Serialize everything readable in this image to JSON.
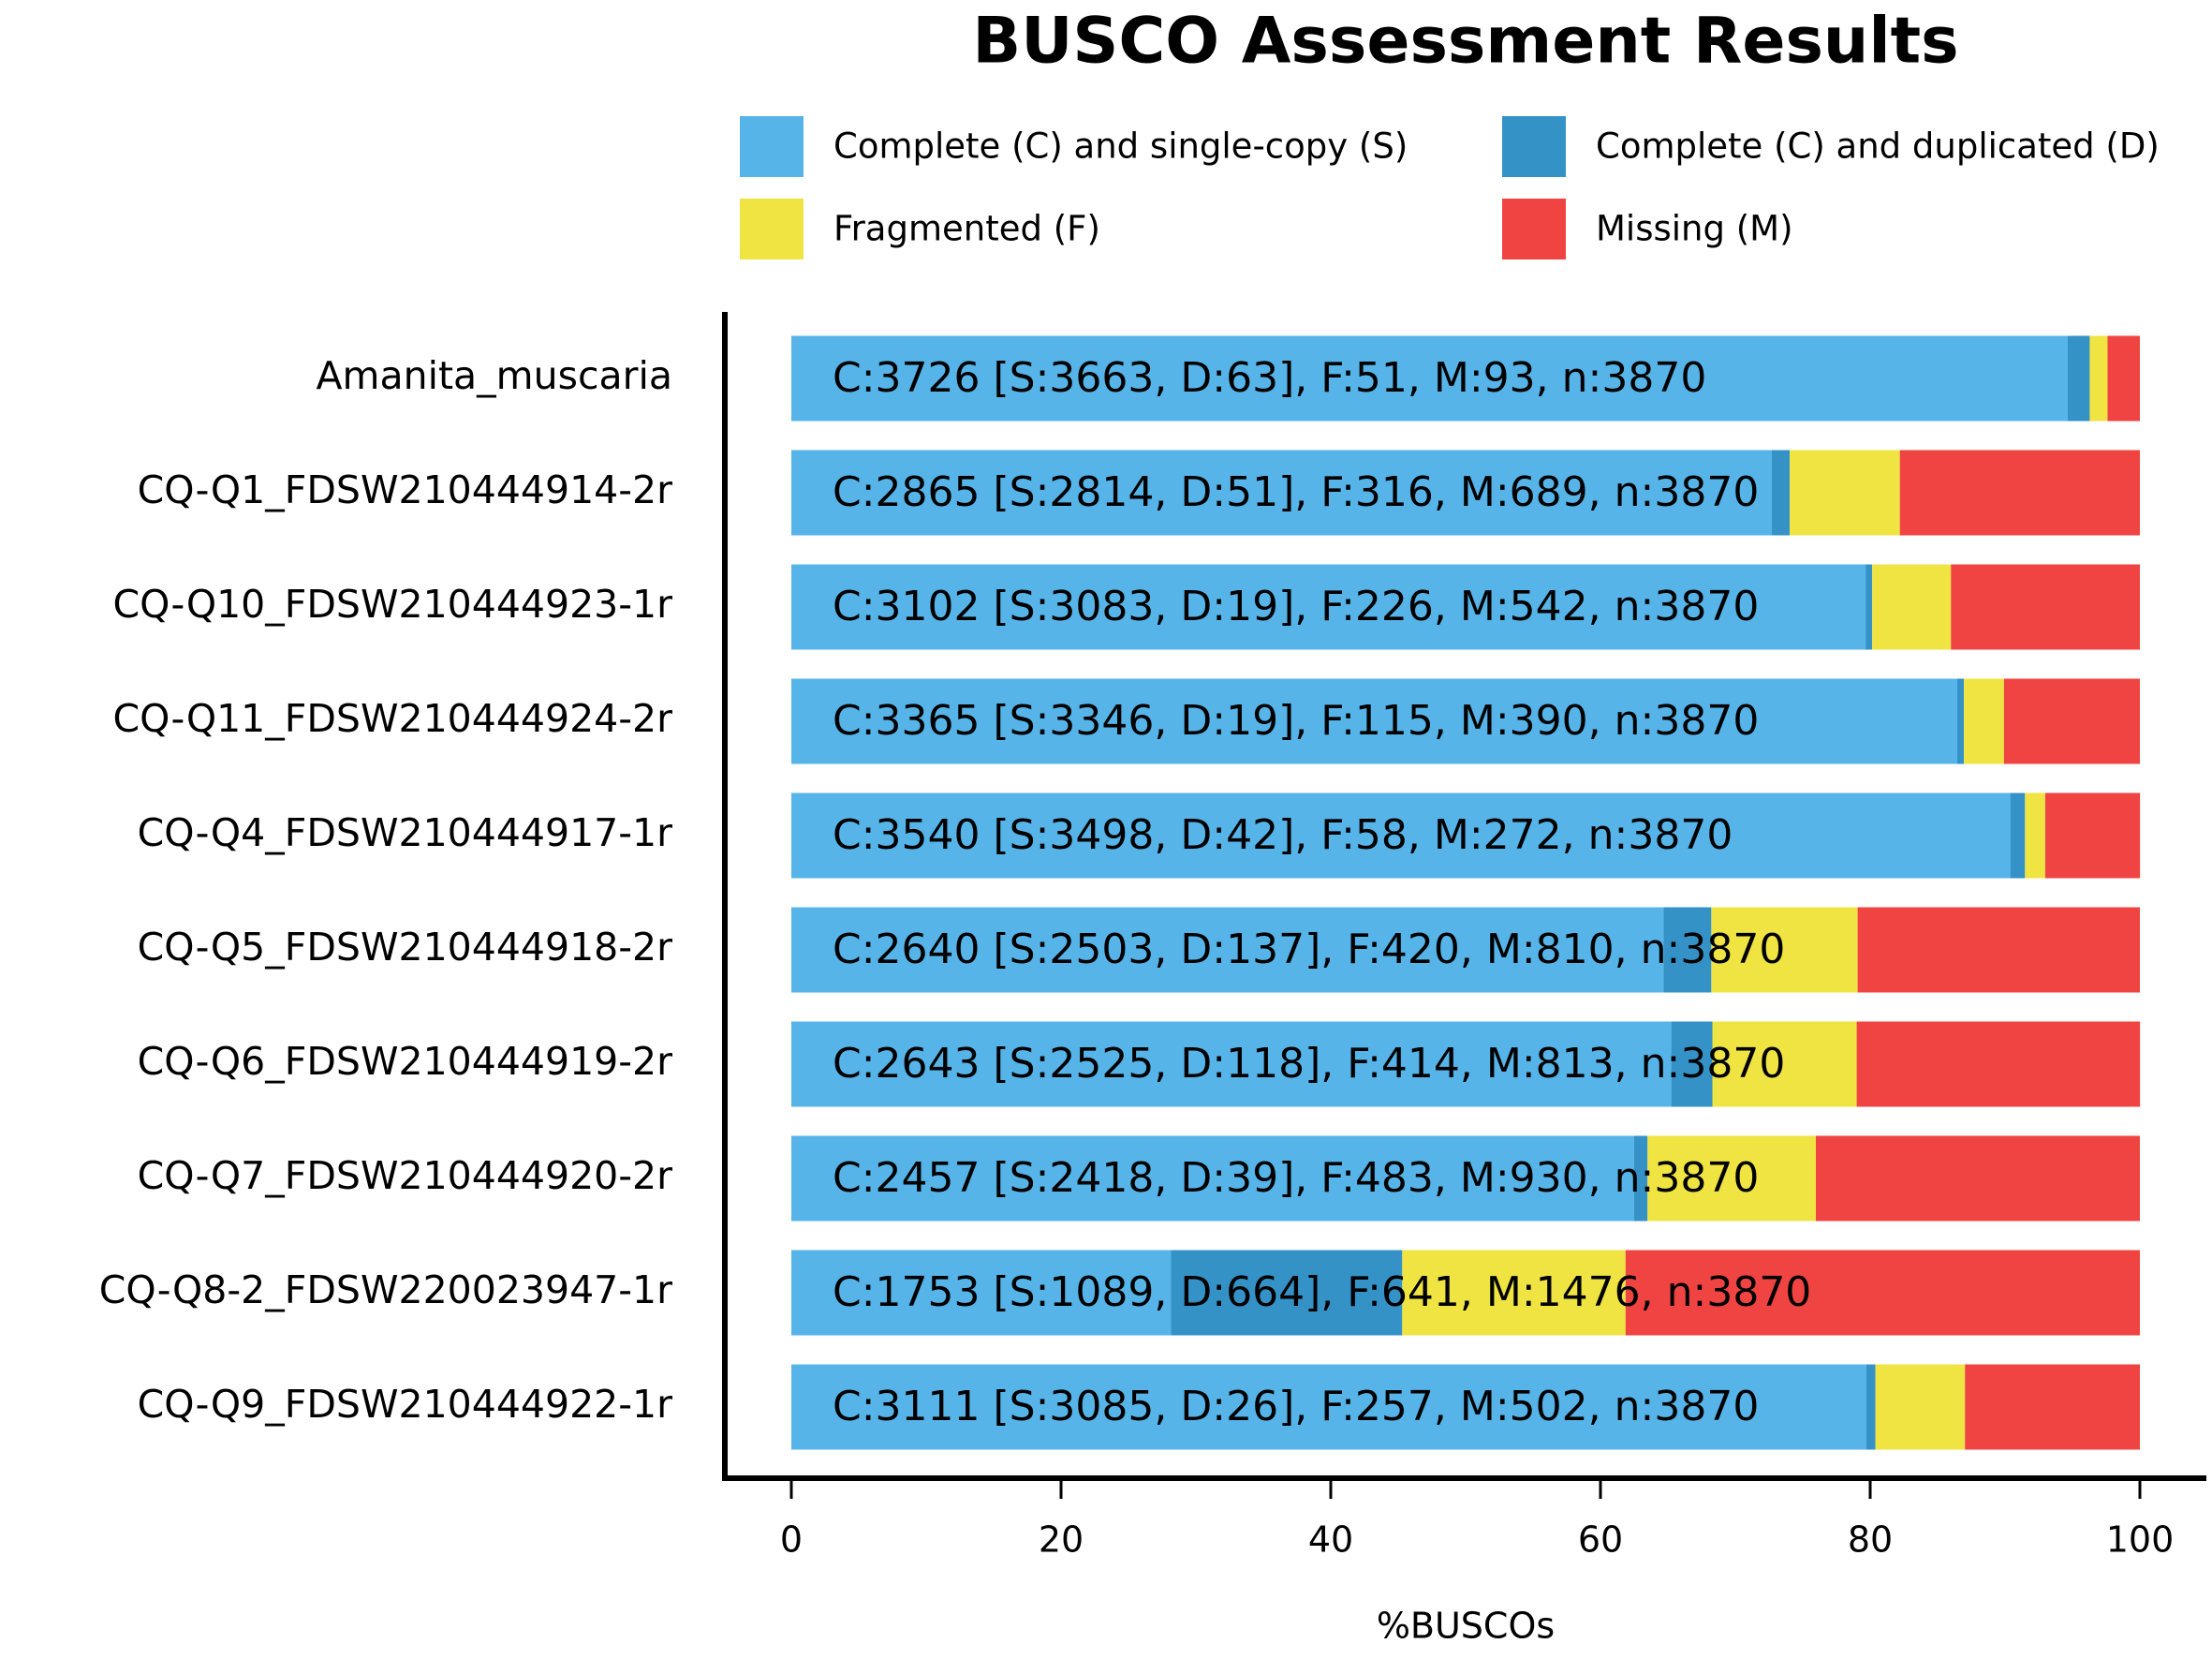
{
  "chart_data": {
    "type": "stacked-barh",
    "title": "BUSCO Assessment Results",
    "x_label": "%BUSCOs",
    "categories": [
      "Amanita_muscaria",
      "CQ-Q1_FDSW210444914-2r",
      "CQ-Q10_FDSW210444923-1r",
      "CQ-Q11_FDSW210444924-2r",
      "CQ-Q4_FDSW210444917-1r",
      "CQ-Q5_FDSW210444918-2r",
      "CQ-Q6_FDSW210444919-2r",
      "CQ-Q7_FDSW210444920-2r",
      "CQ-Q8-2_FDSW220023947-1r",
      "CQ-Q9_FDSW210444922-1r"
    ],
    "series": [
      {
        "name": "Complete (C) and single-copy (S)",
        "color": "#56b4e9",
        "values": [
          94.65,
          72.71,
          79.66,
          86.46,
          90.39,
          64.68,
          65.25,
          62.48,
          28.14,
          79.72
        ]
      },
      {
        "name": "Complete (C) and duplicated (D)",
        "color": "#3492c7",
        "values": [
          1.63,
          1.32,
          0.49,
          0.49,
          1.09,
          3.54,
          3.05,
          1.01,
          17.16,
          0.67
        ]
      },
      {
        "name": "Fragmented (F)",
        "color": "#f0e442",
        "values": [
          1.32,
          8.17,
          5.84,
          2.97,
          1.5,
          10.85,
          10.7,
          12.48,
          16.56,
          6.64
        ]
      },
      {
        "name": "Missing (M)",
        "color": "#f04442",
        "values": [
          2.4,
          17.8,
          14.01,
          10.08,
          7.03,
          20.93,
          21.01,
          24.03,
          38.14,
          12.97
        ]
      }
    ],
    "bar_labels": [
      "C:3726 [S:3663, D:63], F:51, M:93, n:3870",
      "C:2865 [S:2814, D:51], F:316, M:689, n:3870",
      "C:3102 [S:3083, D:19], F:226, M:542, n:3870",
      "C:3365 [S:3346, D:19], F:115, M:390, n:3870",
      "C:3540 [S:3498, D:42], F:58, M:272, n:3870",
      "C:2640 [S:2503, D:137], F:420, M:810, n:3870",
      "C:2643 [S:2525, D:118], F:414, M:813, n:3870",
      "C:2457 [S:2418, D:39], F:483, M:930, n:3870",
      "C:1753 [S:1089, D:664], F:641, M:1476, n:3870",
      "C:3111 [S:3085, D:26], F:257, M:502, n:3870"
    ],
    "xlim": [
      0,
      100
    ],
    "xticks": [
      0,
      20,
      40,
      60,
      80,
      100
    ],
    "legend": "top"
  }
}
